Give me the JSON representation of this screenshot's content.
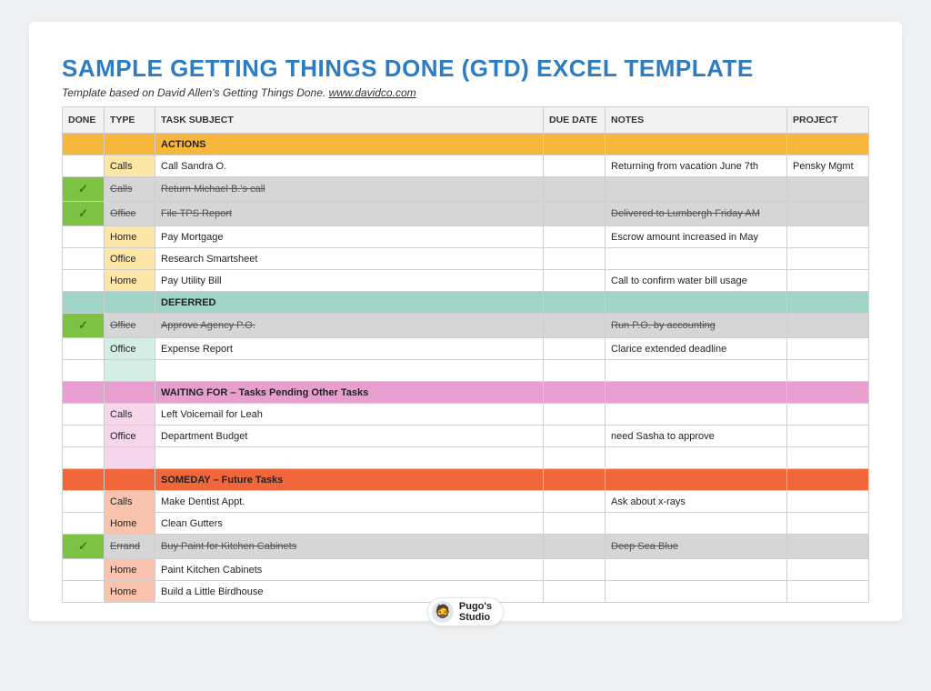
{
  "title": "SAMPLE GETTING THINGS DONE (GTD) EXCEL TEMPLATE",
  "subtitle_prefix": "Template based on David Allen's Getting Things Done. ",
  "subtitle_link": "www.davidco.com",
  "columns": {
    "done": "DONE",
    "type": "TYPE",
    "task": "TASK SUBJECT",
    "due": "DUE DATE",
    "notes": "NOTES",
    "project": "PROJECT"
  },
  "colors": {
    "title": "#2e7cc2",
    "header_bg": "#f2f2f2",
    "border": "#cfcfcf",
    "done_bg": "#7dc242",
    "done_row_bg": "#d6d6d6",
    "section_actions_hdr": "#f6b73c",
    "section_actions_type": "#fde6a6",
    "section_deferred_hdr": "#9fd4c7",
    "section_deferred_type": "#d4eee6",
    "section_waiting_hdr": "#e79fd0",
    "section_waiting_type": "#f6d6ea",
    "section_someday_hdr": "#f1663b",
    "section_someday_type": "#f9c3ad"
  },
  "sections": [
    {
      "label": "ACTIONS",
      "hdr_color_key": "section_actions_hdr",
      "type_color_key": "section_actions_type",
      "rows": [
        {
          "done": false,
          "type": "Calls",
          "task": "Call Sandra O.",
          "due": "",
          "notes": "Returning from vacation June 7th",
          "project": "Pensky Mgmt"
        },
        {
          "done": true,
          "type": "Calls",
          "task": "Return Michael B.'s call",
          "due": "",
          "notes": "",
          "project": ""
        },
        {
          "done": true,
          "type": "Office",
          "task": "File TPS Report",
          "due": "",
          "notes": "Delivered to Lumbergh Friday AM",
          "project": ""
        },
        {
          "done": false,
          "type": "Home",
          "task": "Pay Mortgage",
          "due": "",
          "notes": "Escrow amount increased in May",
          "project": ""
        },
        {
          "done": false,
          "type": "Office",
          "task": "Research Smartsheet",
          "due": "",
          "notes": "",
          "project": ""
        },
        {
          "done": false,
          "type": "Home",
          "task": "Pay Utility Bill",
          "due": "",
          "notes": "Call to confirm water bill usage",
          "project": ""
        }
      ]
    },
    {
      "label": "DEFERRED",
      "hdr_color_key": "section_deferred_hdr",
      "type_color_key": "section_deferred_type",
      "rows": [
        {
          "done": true,
          "type": "Office",
          "task": "Approve Agency P.O.",
          "due": "",
          "notes": "Run P.O. by accounting",
          "project": ""
        },
        {
          "done": false,
          "type": "Office",
          "task": "Expense Report",
          "due": "",
          "notes": "Clarice extended deadline",
          "project": ""
        },
        {
          "done": false,
          "type": "",
          "task": "",
          "due": "",
          "notes": "",
          "project": ""
        }
      ]
    },
    {
      "label": "WAITING FOR – Tasks Pending Other Tasks",
      "hdr_color_key": "section_waiting_hdr",
      "type_color_key": "section_waiting_type",
      "rows": [
        {
          "done": false,
          "type": "Calls",
          "task": "Left Voicemail for Leah",
          "due": "",
          "notes": "",
          "project": ""
        },
        {
          "done": false,
          "type": "Office",
          "task": "Department Budget",
          "due": "",
          "notes": "need Sasha to approve",
          "project": ""
        },
        {
          "done": false,
          "type": "",
          "task": "",
          "due": "",
          "notes": "",
          "project": ""
        }
      ]
    },
    {
      "label": "SOMEDAY – Future Tasks",
      "hdr_color_key": "section_someday_hdr",
      "type_color_key": "section_someday_type",
      "rows": [
        {
          "done": false,
          "type": "Calls",
          "task": "Make Dentist Appt.",
          "due": "",
          "notes": "Ask about x-rays",
          "project": ""
        },
        {
          "done": false,
          "type": "Home",
          "task": "Clean Gutters",
          "due": "",
          "notes": "",
          "project": ""
        },
        {
          "done": true,
          "type": "Errand",
          "task": "Buy Paint for Kitchen Cabinets",
          "due": "",
          "notes": "Deep Sea Blue",
          "project": ""
        },
        {
          "done": false,
          "type": "Home",
          "task": "Paint Kitchen Cabinets",
          "due": "",
          "notes": "",
          "project": ""
        },
        {
          "done": false,
          "type": "Home",
          "task": "Build a Little Birdhouse",
          "due": "",
          "notes": "",
          "project": ""
        }
      ]
    }
  ],
  "badge": {
    "line1": "Pugo's",
    "line2": "Studio",
    "avatar_glyph": "🧔"
  }
}
